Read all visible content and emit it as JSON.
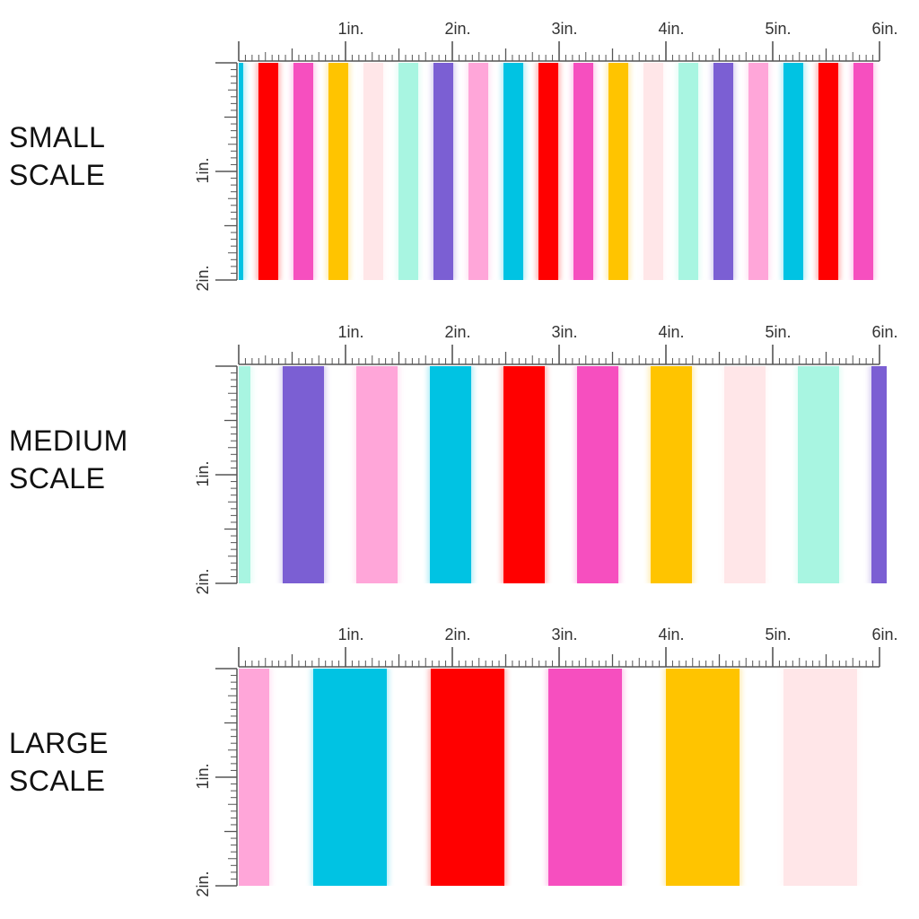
{
  "sections": [
    {
      "label_line1": "SMALL",
      "label_line2": "SCALE",
      "x_ticks": [
        "1in.",
        "2in.",
        "3in.",
        "4in.",
        "5in.",
        "6in."
      ],
      "y_ticks": [
        "1in.",
        "2in."
      ],
      "stripes": [
        "#00c3e3",
        "#ff0000",
        "#f64fbf",
        "#ffc400",
        "#ffe6e8",
        "#a8f5e1",
        "#7b5fd3",
        "#ffa6d9",
        "#00c3e3",
        "#ff0000",
        "#f64fbf",
        "#ffc400",
        "#ffe6e8",
        "#a8f5e1",
        "#7b5fd3",
        "#ffa6d9",
        "#00c3e3",
        "#ff0000",
        "#f64fbf"
      ]
    },
    {
      "label_line1": "MEDIUM",
      "label_line2": "SCALE",
      "x_ticks": [
        "1in.",
        "2in.",
        "3in.",
        "4in.",
        "5in.",
        "6in."
      ],
      "y_ticks": [
        "1in.",
        "2in."
      ],
      "stripes": [
        "#a8f5e1",
        "#7b5fd3",
        "#ffa6d9",
        "#00c3e3",
        "#ff0000",
        "#f64fbf",
        "#ffc400",
        "#ffe6e8",
        "#a8f5e1",
        "#7b5fd3"
      ]
    },
    {
      "label_line1": "LARGE",
      "label_line2": "SCALE",
      "x_ticks": [
        "1in.",
        "2in.",
        "3in.",
        "4in.",
        "5in.",
        "6in."
      ],
      "y_ticks": [
        "1in.",
        "2in."
      ],
      "stripes": [
        "#ffa6d9",
        "#00c3e3",
        "#ff0000",
        "#f64fbf",
        "#ffc400",
        "#ffe6e8"
      ]
    }
  ]
}
